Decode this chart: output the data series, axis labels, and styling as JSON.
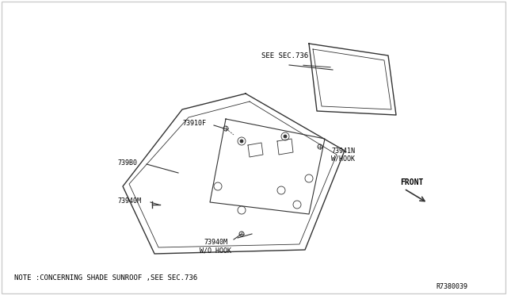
{
  "bg_color": "#ffffff",
  "border_color": "#cccccc",
  "line_color": "#333333",
  "text_color": "#000000",
  "title_text": "",
  "note_text": "NOTE :CONCERNING SHADE SUNROOF ,SEE SEC.736",
  "ref_number": "R7380039",
  "labels": {
    "see_sec736": "SEE SEC.736",
    "p73910F": "73910F",
    "p739B0": "739B0",
    "p73941N": "73941N",
    "w_hook_right": "W/HOOK",
    "p73940M_left": "73940M",
    "p73940M_bottom": "73940M",
    "wo_hook": "W/O HOOK",
    "front": "FRONT"
  }
}
